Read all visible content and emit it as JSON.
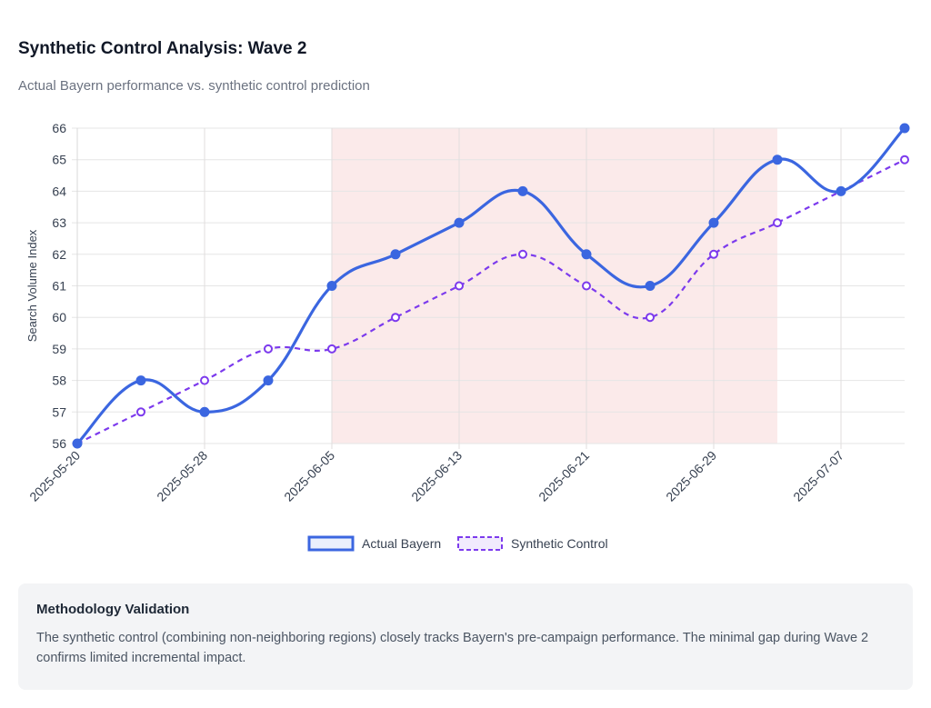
{
  "header": {
    "title": "Synthetic Control Analysis: Wave 2",
    "subtitle": "Actual Bayern performance vs. synthetic control prediction"
  },
  "chart_data": {
    "type": "line",
    "ylabel": "Search Volume Index",
    "ylim": [
      56,
      66
    ],
    "yticks": [
      56,
      57,
      58,
      59,
      60,
      61,
      62,
      63,
      64,
      65,
      66
    ],
    "x": [
      "2025-05-20",
      "2025-05-24",
      "2025-05-28",
      "2025-06-01",
      "2025-06-05",
      "2025-06-09",
      "2025-06-13",
      "2025-06-17",
      "2025-06-21",
      "2025-06-25",
      "2025-06-29",
      "2025-07-03",
      "2025-07-07",
      "2025-07-11"
    ],
    "xticks": [
      "2025-05-20",
      "2025-05-28",
      "2025-06-05",
      "2025-06-13",
      "2025-06-21",
      "2025-06-29",
      "2025-07-07"
    ],
    "shaded_region": {
      "start": "2025-06-05",
      "end": "2025-07-03",
      "color": "#fbeaea"
    },
    "grid": true,
    "legend_position": "bottom",
    "series": [
      {
        "name": "Actual Bayern",
        "values": [
          56,
          58,
          57,
          58,
          61,
          62,
          63,
          64,
          62,
          61,
          63,
          65,
          64,
          66
        ],
        "color": "#3b66e0",
        "style": "solid"
      },
      {
        "name": "Synthetic Control",
        "values": [
          56,
          57,
          58,
          59,
          59,
          60,
          61,
          62,
          61,
          60,
          62,
          63,
          64,
          65
        ],
        "color": "#7c3aed",
        "style": "dashed"
      }
    ]
  },
  "note": {
    "title": "Methodology Validation",
    "text": "The synthetic control (combining non-neighboring regions) closely tracks Bayern's pre-campaign performance. The minimal gap during Wave 2 confirms limited incremental impact."
  }
}
